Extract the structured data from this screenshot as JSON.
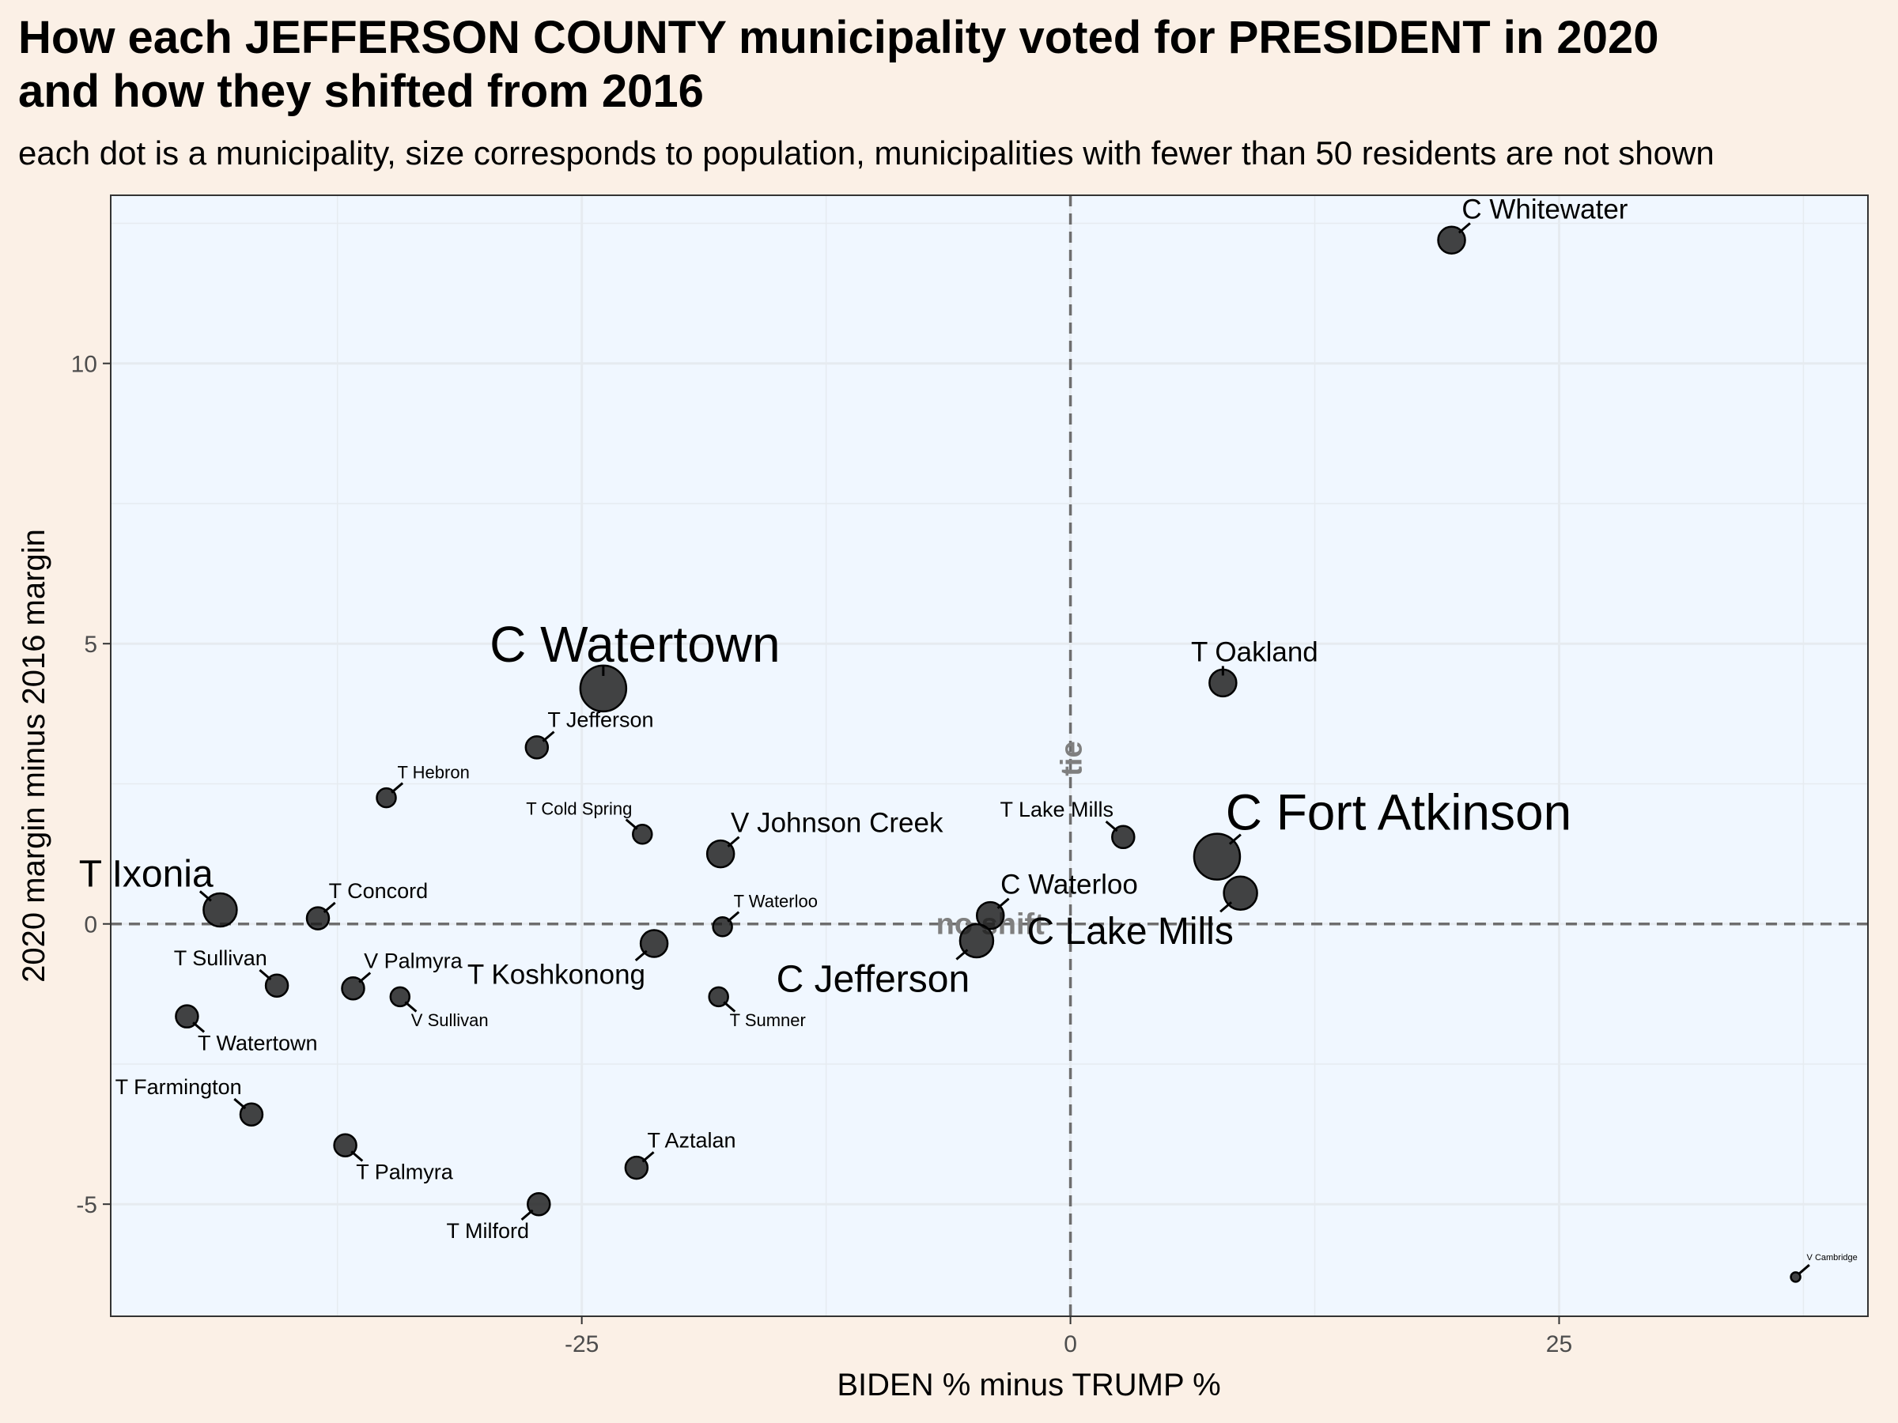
{
  "title_line1": "How each JEFFERSON COUNTY municipality voted for PRESIDENT in 2020",
  "title_line2": "and how they shifted from 2016",
  "subtitle": "each dot is a municipality, size corresponds to population, municipalities with fewer than 50 residents are not shown",
  "chart_data": {
    "type": "scatter",
    "xlabel": "BIDEN % minus TRUMP %",
    "ylabel": "2020 margin minus 2016 margin",
    "xlim": [
      -49.1,
      40.8
    ],
    "ylim": [
      -7.0,
      13.0
    ],
    "x_ticks": [
      -25,
      0,
      25
    ],
    "x_tick_labels": [
      "-25",
      "0",
      "25"
    ],
    "y_ticks": [
      -5,
      0,
      5,
      10
    ],
    "y_tick_labels": [
      "-5",
      "0",
      "5",
      "10"
    ],
    "reference_lines": [
      {
        "axis": "x",
        "value": 0,
        "label": "tie"
      },
      {
        "axis": "y",
        "value": 0,
        "label": "no shift"
      }
    ],
    "points": [
      {
        "name": "C Whitewater",
        "x": 19.5,
        "y": 12.2,
        "size": 3,
        "label_pos": "tr"
      },
      {
        "name": "T Oakland",
        "x": 7.8,
        "y": 4.3,
        "size": 3,
        "label_pos": "tc"
      },
      {
        "name": "C Watertown",
        "x": -23.9,
        "y": 4.2,
        "size": 5,
        "label_pos": "tc"
      },
      {
        "name": "T Jefferson",
        "x": -27.3,
        "y": 3.15,
        "size": 2,
        "label_pos": "tr"
      },
      {
        "name": "T Hebron",
        "x": -35.0,
        "y": 2.25,
        "size": 1,
        "label_pos": "tr"
      },
      {
        "name": "T Cold Spring",
        "x": -21.9,
        "y": 1.6,
        "size": 1,
        "label_pos": "tl"
      },
      {
        "name": "V Johnson Creek",
        "x": -17.9,
        "y": 1.25,
        "size": 3,
        "label_pos": "tr"
      },
      {
        "name": "T Lake Mills",
        "x": 2.7,
        "y": 1.55,
        "size": 2,
        "label_pos": "tl"
      },
      {
        "name": "C Fort Atkinson",
        "x": 7.5,
        "y": 1.2,
        "size": 5,
        "label_pos": "tr"
      },
      {
        "name": "C Lake Mills",
        "x": 8.7,
        "y": 0.55,
        "size": 4,
        "label_pos": "bl"
      },
      {
        "name": "C Waterloo",
        "x": -4.1,
        "y": 0.15,
        "size": 3,
        "label_pos": "tr"
      },
      {
        "name": "C Jefferson",
        "x": -4.8,
        "y": -0.3,
        "size": 4,
        "label_pos": "bl"
      },
      {
        "name": "T Ixonia",
        "x": -43.5,
        "y": 0.25,
        "size": 4,
        "label_pos": "tl"
      },
      {
        "name": "T Concord",
        "x": -38.5,
        "y": 0.1,
        "size": 2,
        "label_pos": "tr"
      },
      {
        "name": "T Waterloo",
        "x": -17.8,
        "y": -0.05,
        "size": 1,
        "label_pos": "tr"
      },
      {
        "name": "T Koshkonong",
        "x": -21.3,
        "y": -0.35,
        "size": 3,
        "label_pos": "bl"
      },
      {
        "name": "T Sullivan",
        "x": -40.6,
        "y": -1.1,
        "size": 2,
        "label_pos": "tl"
      },
      {
        "name": "V Palmyra",
        "x": -36.7,
        "y": -1.15,
        "size": 2,
        "label_pos": "tr"
      },
      {
        "name": "V Sullivan",
        "x": -34.3,
        "y": -1.3,
        "size": 1,
        "label_pos": "br"
      },
      {
        "name": "T Sumner",
        "x": -18.0,
        "y": -1.3,
        "size": 1,
        "label_pos": "br"
      },
      {
        "name": "T Watertown",
        "x": -45.2,
        "y": -1.65,
        "size": 2,
        "label_pos": "br"
      },
      {
        "name": "T Farmington",
        "x": -41.9,
        "y": -3.4,
        "size": 2,
        "label_pos": "tl"
      },
      {
        "name": "T Palmyra",
        "x": -37.1,
        "y": -3.95,
        "size": 2,
        "label_pos": "br"
      },
      {
        "name": "T Aztalan",
        "x": -22.2,
        "y": -4.35,
        "size": 2,
        "label_pos": "tr"
      },
      {
        "name": "T Milford",
        "x": -27.2,
        "y": -5.0,
        "size": 2,
        "label_pos": "bl"
      },
      {
        "name": "V Cambridge",
        "x": 37.1,
        "y": -6.3,
        "size": 0,
        "label_pos": "tr"
      }
    ]
  },
  "colors": {
    "page_background": "#fbf0e6",
    "panel_background": "#f0f7ff",
    "grid": "#e6ebf0",
    "point": "#1a1a1a",
    "reference_line": "#6e6e6e",
    "reference_label": "#7f7f7f"
  }
}
